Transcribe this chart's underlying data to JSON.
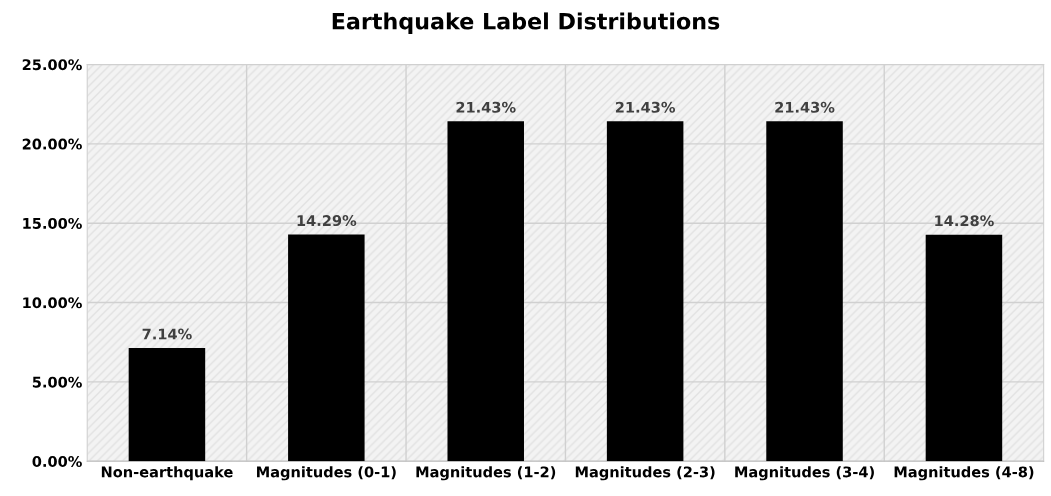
{
  "chart_data": {
    "type": "bar",
    "title": "Earthquake Label Distributions",
    "categories": [
      "Non-earthquake",
      "Magnitudes (0-1)",
      "Magnitudes (1-2)",
      "Magnitudes (2-3)",
      "Magnitudes (3-4)",
      "Magnitudes (4-8)"
    ],
    "values": [
      7.14,
      14.29,
      21.43,
      21.43,
      21.43,
      14.28
    ],
    "value_labels": [
      "7.14%",
      "14.29%",
      "21.43%",
      "21.43%",
      "21.43%",
      "14.28%"
    ],
    "color": "#000000",
    "ylim": [
      0,
      25
    ],
    "yticks": [
      {
        "value": 0,
        "label": "0.00%"
      },
      {
        "value": 5,
        "label": "5.00%"
      },
      {
        "value": 10,
        "label": "10.00%"
      },
      {
        "value": 15,
        "label": "15.00%"
      },
      {
        "value": 20,
        "label": "20.00%"
      },
      {
        "value": 25,
        "label": "25.00%"
      }
    ],
    "grid": true
  }
}
